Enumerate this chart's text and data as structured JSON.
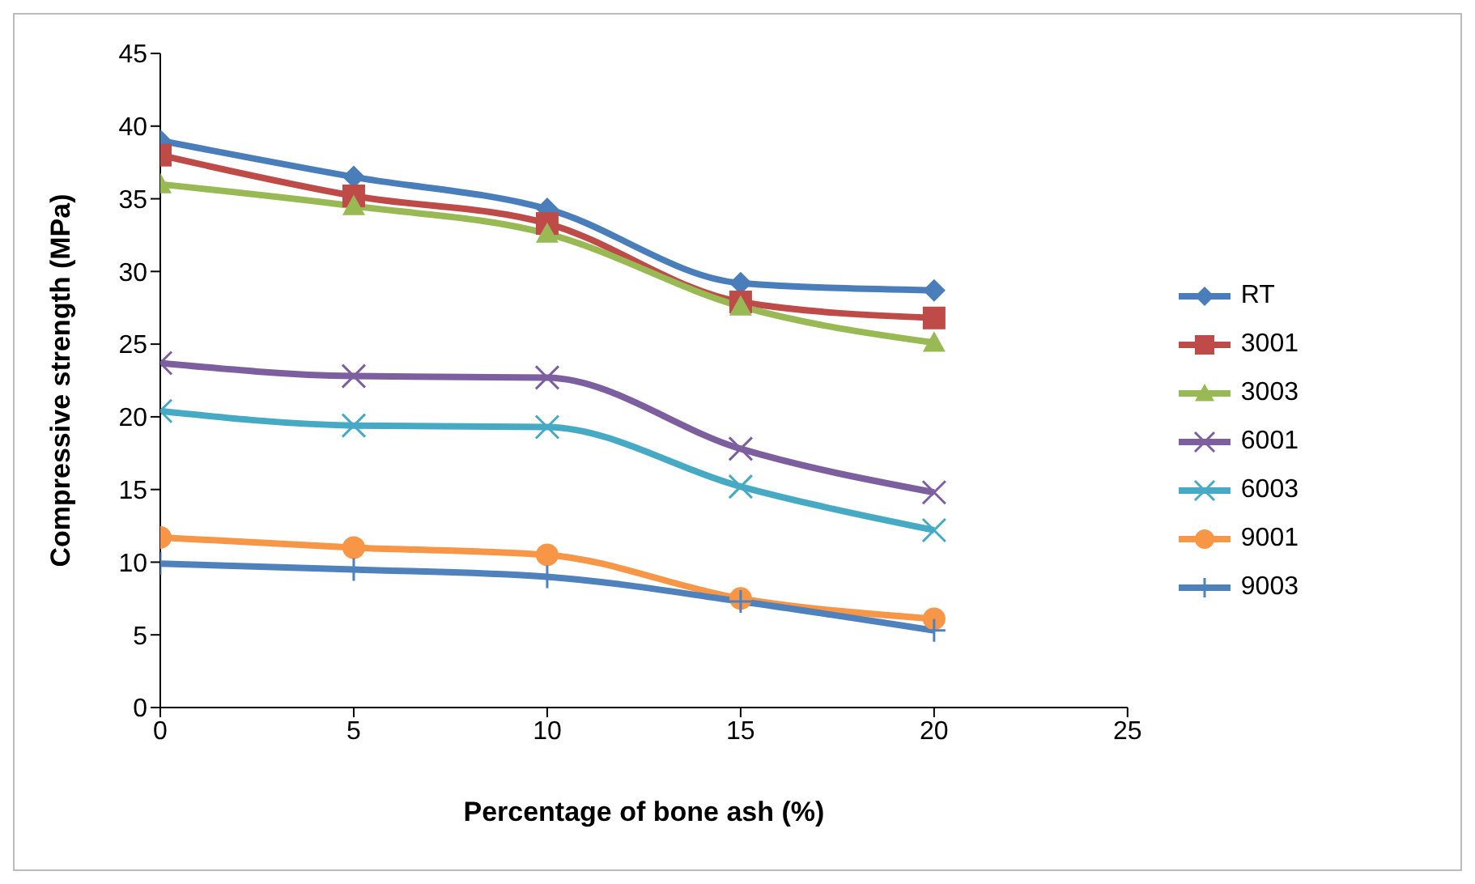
{
  "chart_data": {
    "type": "line",
    "xlabel": "Percentage of bone ash (%)",
    "ylabel": "Compressive strength (MPa)",
    "x": [
      0,
      5,
      10,
      15,
      20
    ],
    "xlim": [
      0,
      25
    ],
    "xticks": [
      0,
      5,
      10,
      15,
      20,
      25
    ],
    "ylim": [
      0,
      45
    ],
    "yticks": [
      0,
      5,
      10,
      15,
      20,
      25,
      30,
      35,
      40,
      45
    ],
    "grid": false,
    "legend": "right",
    "series": [
      {
        "name": "RT",
        "color": "#4a7ebb",
        "marker": "diamond",
        "values": [
          39,
          36.5,
          34.3,
          29.2,
          28.7
        ]
      },
      {
        "name": "3001",
        "color": "#be4b48",
        "marker": "square",
        "values": [
          38,
          35.2,
          33.3,
          27.9,
          26.8
        ]
      },
      {
        "name": "3003",
        "color": "#98b954",
        "marker": "triangle",
        "values": [
          36,
          34.5,
          32.6,
          27.6,
          25.1
        ]
      },
      {
        "name": "6001",
        "color": "#7d5fa0",
        "marker": "cross",
        "values": [
          23.7,
          22.8,
          22.7,
          17.8,
          14.8
        ]
      },
      {
        "name": "6003",
        "color": "#46aac5",
        "marker": "cross",
        "values": [
          20.4,
          19.4,
          19.3,
          15.2,
          12.2
        ]
      },
      {
        "name": "9001",
        "color": "#f79646",
        "marker": "circle",
        "values": [
          11.7,
          11,
          10.5,
          7.5,
          6.1
        ]
      },
      {
        "name": "9003",
        "color": "#4f81bd",
        "marker": "plus",
        "values": [
          9.9,
          9.5,
          9,
          7.3,
          5.3
        ]
      }
    ]
  }
}
